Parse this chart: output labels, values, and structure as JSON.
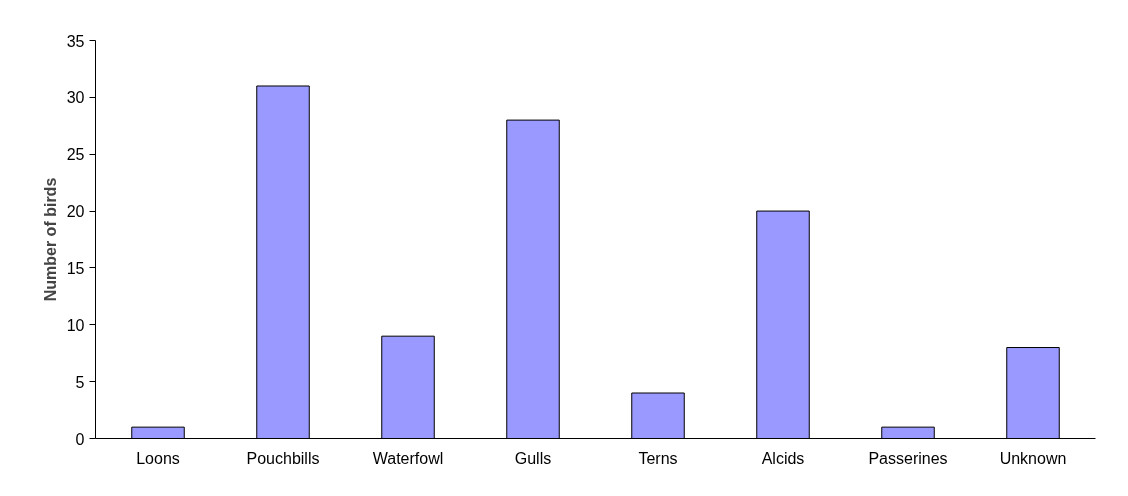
{
  "chart_data": {
    "type": "bar",
    "ylabel": "Number of birds",
    "categories": [
      "Loons",
      "Pouchbills",
      "Waterfowl",
      "Gulls",
      "Terns",
      "Alcids",
      "Passerines",
      "Unknown"
    ],
    "values": [
      1,
      31,
      9,
      28,
      4,
      20,
      1,
      8
    ],
    "color": "#9999ff",
    "ylim": [
      0,
      35
    ],
    "yticks": [
      0,
      5,
      10,
      15,
      20,
      25,
      30,
      35
    ],
    "grid": false
  }
}
